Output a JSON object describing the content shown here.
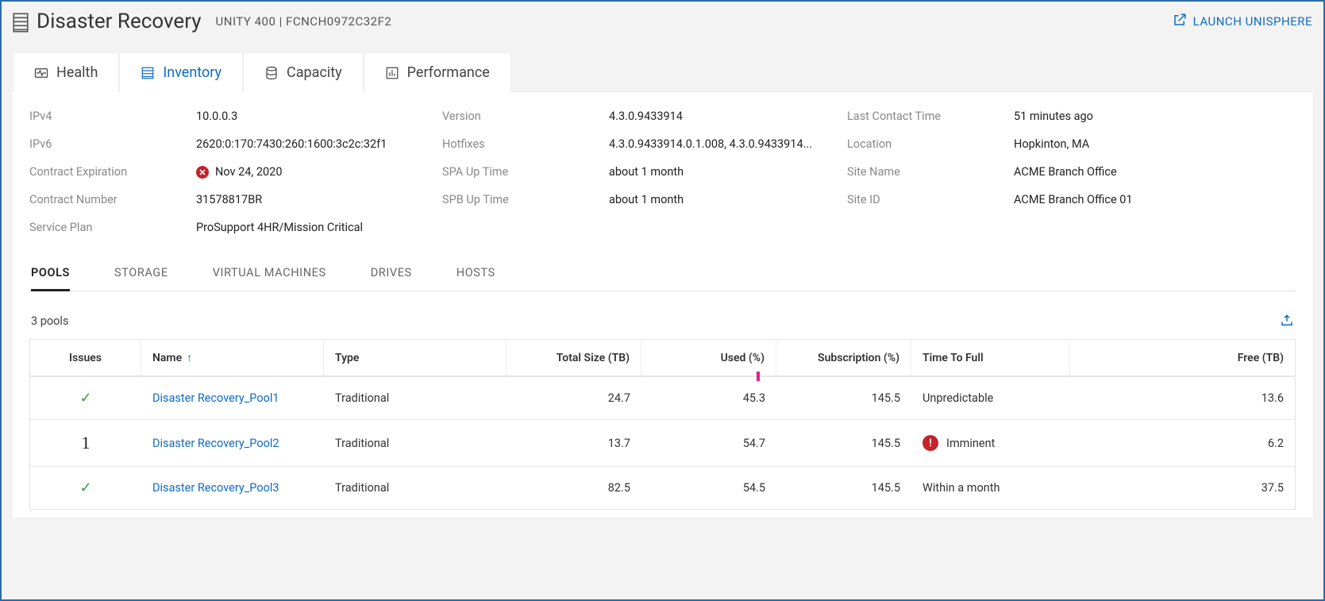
{
  "header": {
    "title": "Disaster Recovery",
    "model": "UNITY 400",
    "serial": "FCNCH0972C32F2",
    "launch_label": "LAUNCH UNISPHERE"
  },
  "colors": {
    "accent": "#0e6bc4",
    "border": "#2b6baa",
    "error": "#c4232b",
    "ok": "#3a9b3a",
    "tick": "#e91e8c",
    "page_bg": "#f3f3f3"
  },
  "top_tabs": [
    {
      "id": "health",
      "label": "Health",
      "icon": "heartbeat"
    },
    {
      "id": "inventory",
      "label": "Inventory",
      "icon": "list",
      "active": true
    },
    {
      "id": "capacity",
      "label": "Capacity",
      "icon": "db"
    },
    {
      "id": "performance",
      "label": "Performance",
      "icon": "bars"
    }
  ],
  "info": {
    "col1": [
      {
        "label": "IPv4",
        "value": "10.0.0.3"
      },
      {
        "label": "IPv6",
        "value": "2620:0:170:7430:260:1600:3c2c:32f1"
      },
      {
        "label": "Contract Expiration",
        "value": "Nov 24, 2020",
        "error": true
      },
      {
        "label": "Contract Number",
        "value": "31578817BR"
      },
      {
        "label": "Service Plan",
        "value": "ProSupport 4HR/Mission Critical"
      }
    ],
    "col2": [
      {
        "label": "Version",
        "value": "4.3.0.9433914"
      },
      {
        "label": "Hotfixes",
        "value": "4.3.0.9433914.0.1.008, 4.3.0.9433914..."
      },
      {
        "label": "SPA Up Time",
        "value": "about 1 month"
      },
      {
        "label": "SPB Up Time",
        "value": "about 1 month"
      }
    ],
    "col3": [
      {
        "label": "Last Contact Time",
        "value": "51 minutes ago"
      },
      {
        "label": "Location",
        "value": "Hopkinton, MA"
      },
      {
        "label": "Site Name",
        "value": "ACME Branch Office"
      },
      {
        "label": "Site ID",
        "value": "ACME Branch Office 01"
      }
    ]
  },
  "sub_tabs": [
    {
      "id": "pools",
      "label": "POOLS",
      "active": true
    },
    {
      "id": "storage",
      "label": "STORAGE"
    },
    {
      "id": "vms",
      "label": "VIRTUAL MACHINES"
    },
    {
      "id": "drives",
      "label": "DRIVES"
    },
    {
      "id": "hosts",
      "label": "HOSTS"
    }
  ],
  "pools_summary": "3 pools",
  "columns": [
    {
      "key": "issues",
      "label": "Issues",
      "align": "center"
    },
    {
      "key": "name",
      "label": "Name",
      "align": "left",
      "sort": "asc"
    },
    {
      "key": "type",
      "label": "Type",
      "align": "left"
    },
    {
      "key": "total",
      "label": "Total Size (TB)",
      "align": "right"
    },
    {
      "key": "used",
      "label": "Used (%)",
      "align": "right"
    },
    {
      "key": "sub",
      "label": "Subscription (%)",
      "align": "right"
    },
    {
      "key": "ttf",
      "label": "Time To Full",
      "align": "left"
    },
    {
      "key": "free",
      "label": "Free (TB)",
      "align": "right"
    }
  ],
  "rows": [
    {
      "status": "ok",
      "name": "Disaster Recovery_Pool1",
      "type": "Traditional",
      "total": "24.7",
      "used": "45.3",
      "sub": "145.5",
      "ttf": "Unpredictable",
      "ttf_warn": false,
      "free": "13.6",
      "tick": true
    },
    {
      "status": "num",
      "status_num": "1",
      "name": "Disaster Recovery_Pool2",
      "type": "Traditional",
      "total": "13.7",
      "used": "54.7",
      "sub": "145.5",
      "ttf": "Imminent",
      "ttf_warn": true,
      "free": "6.2"
    },
    {
      "status": "ok",
      "name": "Disaster Recovery_Pool3",
      "type": "Traditional",
      "total": "82.5",
      "used": "54.5",
      "sub": "145.5",
      "ttf": "Within a month",
      "ttf_warn": false,
      "free": "37.5"
    }
  ]
}
